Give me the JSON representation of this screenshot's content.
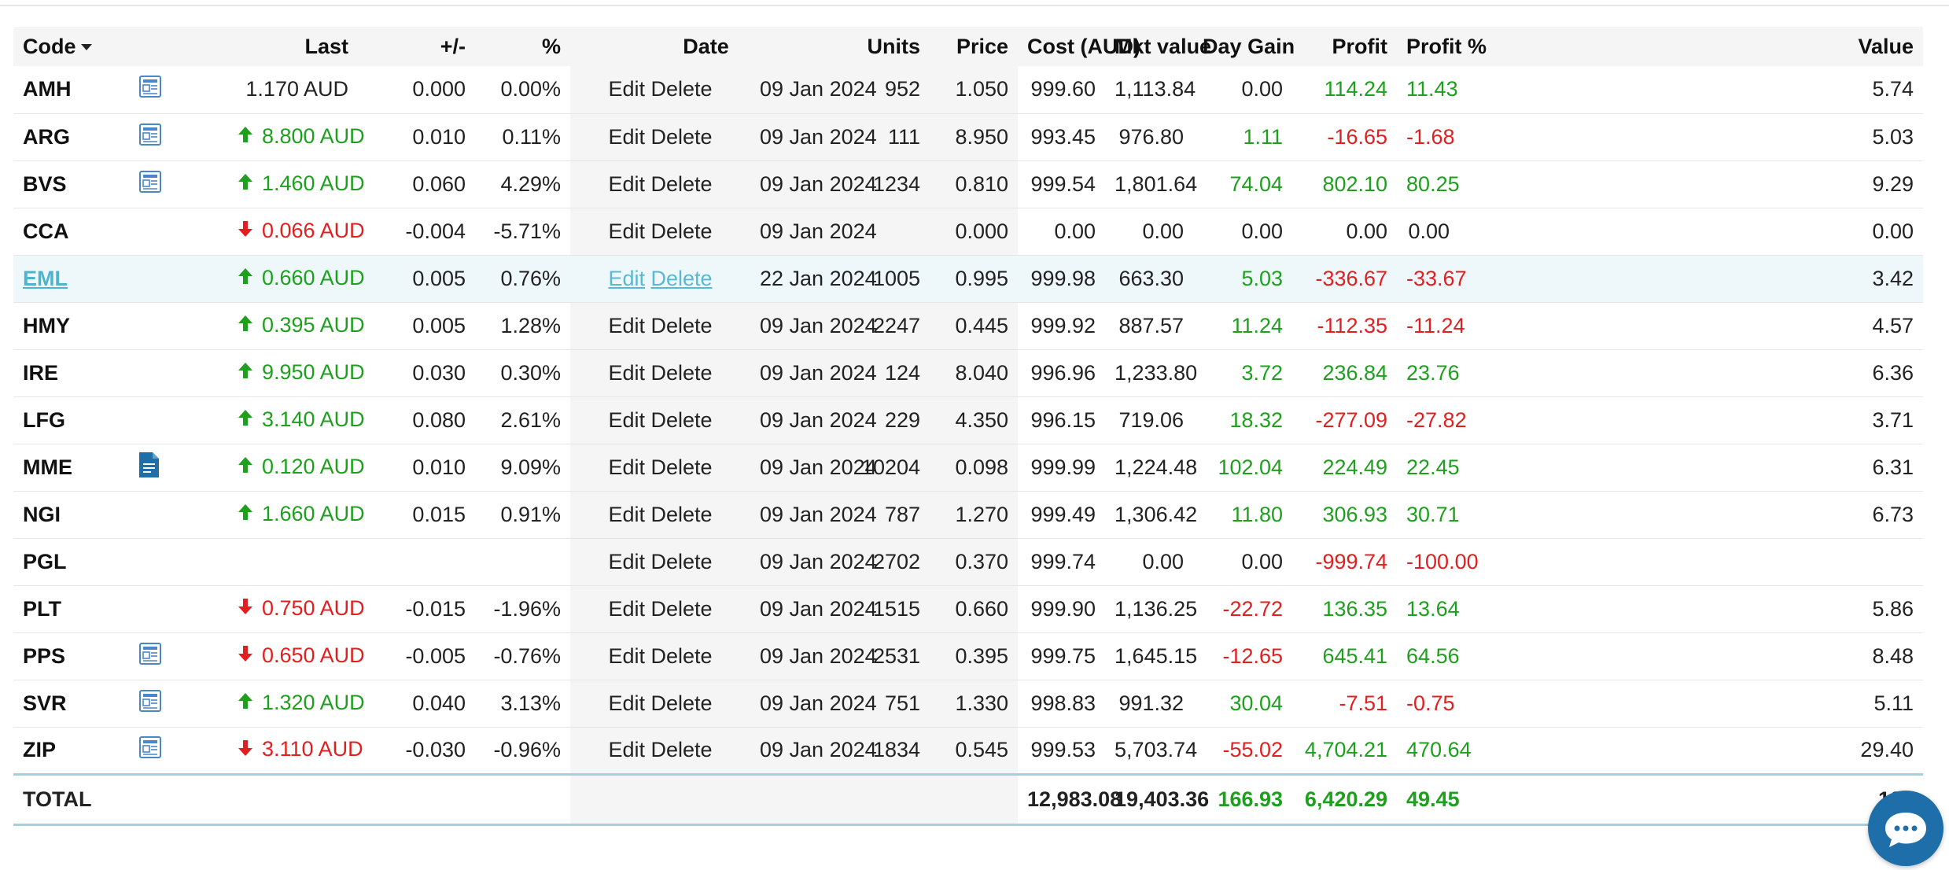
{
  "columns": {
    "code": "Code",
    "last": "Last",
    "change": "+/-",
    "percent": "%",
    "date": "Date",
    "units": "Units",
    "price": "Price",
    "cost": "Cost (AUD)",
    "mkt_value": "Mkt value",
    "day_gain": "Day Gain",
    "profit": "Profit",
    "profit_pct": "Profit %",
    "value": "Value"
  },
  "actions": {
    "edit": "Edit",
    "delete": "Delete"
  },
  "rows": [
    {
      "code": "AMH",
      "icon": "news-icon",
      "arrow": "",
      "last": "1.170 AUD",
      "change": "0.000",
      "pct": "0.00%",
      "date": "09 Jan 2024",
      "units": "952",
      "price": "1.050",
      "cost": "999.60",
      "mkt": "1,113.84",
      "day_gain": "0.00",
      "day_color": "dark",
      "profit": "114.24",
      "profit_pct": "11.43",
      "profit_color": "green",
      "value": "5.74"
    },
    {
      "code": "ARG",
      "icon": "news-icon",
      "arrow": "up",
      "last": "8.800 AUD",
      "change": "0.010",
      "pct": "0.11%",
      "date": "09 Jan 2024",
      "units": "111",
      "price": "8.950",
      "cost": "993.45",
      "mkt": "976.80",
      "day_gain": "1.11",
      "day_color": "green",
      "profit": "-16.65",
      "profit_pct": "-1.68",
      "profit_color": "red",
      "value": "5.03"
    },
    {
      "code": "BVS",
      "icon": "news-icon",
      "arrow": "up",
      "last": "1.460 AUD",
      "change": "0.060",
      "pct": "4.29%",
      "date": "09 Jan 2024",
      "units": "1234",
      "price": "0.810",
      "cost": "999.54",
      "mkt": "1,801.64",
      "day_gain": "74.04",
      "day_color": "green",
      "profit": "802.10",
      "profit_pct": "80.25",
      "profit_color": "green",
      "value": "9.29"
    },
    {
      "code": "CCA",
      "icon": "",
      "arrow": "down",
      "last": "0.066 AUD",
      "change": "-0.004",
      "pct": "-5.71%",
      "date": "09 Jan 2024",
      "units": "",
      "price": "0.000",
      "cost": "0.00",
      "mkt": "0.00",
      "day_gain": "0.00",
      "day_color": "dark",
      "profit": "0.00",
      "profit_pct": "0.00",
      "profit_color": "dark",
      "value": "0.00"
    },
    {
      "code": "EML",
      "icon": "",
      "arrow": "up",
      "last": "0.660 AUD",
      "change": "0.005",
      "pct": "0.76%",
      "date": "22 Jan 2024",
      "units": "1005",
      "price": "0.995",
      "cost": "999.98",
      "mkt": "663.30",
      "day_gain": "5.03",
      "day_color": "green",
      "profit": "-336.67",
      "profit_pct": "-33.67",
      "profit_color": "red",
      "value": "3.42",
      "highlight": true
    },
    {
      "code": "HMY",
      "icon": "",
      "arrow": "up",
      "last": "0.395 AUD",
      "change": "0.005",
      "pct": "1.28%",
      "date": "09 Jan 2024",
      "units": "2247",
      "price": "0.445",
      "cost": "999.92",
      "mkt": "887.57",
      "day_gain": "11.24",
      "day_color": "green",
      "profit": "-112.35",
      "profit_pct": "-11.24",
      "profit_color": "red",
      "value": "4.57"
    },
    {
      "code": "IRE",
      "icon": "",
      "arrow": "up",
      "last": "9.950 AUD",
      "change": "0.030",
      "pct": "0.30%",
      "date": "09 Jan 2024",
      "units": "124",
      "price": "8.040",
      "cost": "996.96",
      "mkt": "1,233.80",
      "day_gain": "3.72",
      "day_color": "green",
      "profit": "236.84",
      "profit_pct": "23.76",
      "profit_color": "green",
      "value": "6.36"
    },
    {
      "code": "LFG",
      "icon": "",
      "arrow": "up",
      "last": "3.140 AUD",
      "change": "0.080",
      "pct": "2.61%",
      "date": "09 Jan 2024",
      "units": "229",
      "price": "4.350",
      "cost": "996.15",
      "mkt": "719.06",
      "day_gain": "18.32",
      "day_color": "green",
      "profit": "-277.09",
      "profit_pct": "-27.82",
      "profit_color": "red",
      "value": "3.71"
    },
    {
      "code": "MME",
      "icon": "document-icon",
      "arrow": "up",
      "last": "0.120 AUD",
      "change": "0.010",
      "pct": "9.09%",
      "date": "09 Jan 2024",
      "units": "10204",
      "price": "0.098",
      "cost": "999.99",
      "mkt": "1,224.48",
      "day_gain": "102.04",
      "day_color": "green",
      "profit": "224.49",
      "profit_pct": "22.45",
      "profit_color": "green",
      "value": "6.31"
    },
    {
      "code": "NGI",
      "icon": "",
      "arrow": "up",
      "last": "1.660 AUD",
      "change": "0.015",
      "pct": "0.91%",
      "date": "09 Jan 2024",
      "units": "787",
      "price": "1.270",
      "cost": "999.49",
      "mkt": "1,306.42",
      "day_gain": "11.80",
      "day_color": "green",
      "profit": "306.93",
      "profit_pct": "30.71",
      "profit_color": "green",
      "value": "6.73"
    },
    {
      "code": "PGL",
      "icon": "",
      "arrow": "",
      "last": "",
      "change": "",
      "pct": "",
      "date": "09 Jan 2024",
      "units": "2702",
      "price": "0.370",
      "cost": "999.74",
      "mkt": "0.00",
      "day_gain": "0.00",
      "day_color": "dark",
      "profit": "-999.74",
      "profit_pct": "-100.00",
      "profit_color": "red",
      "value": ""
    },
    {
      "code": "PLT",
      "icon": "",
      "arrow": "down",
      "last": "0.750 AUD",
      "change": "-0.015",
      "pct": "-1.96%",
      "date": "09 Jan 2024",
      "units": "1515",
      "price": "0.660",
      "cost": "999.90",
      "mkt": "1,136.25",
      "day_gain": "-22.72",
      "day_color": "red",
      "profit": "136.35",
      "profit_pct": "13.64",
      "profit_color": "green",
      "value": "5.86"
    },
    {
      "code": "PPS",
      "icon": "news-icon",
      "arrow": "down",
      "last": "0.650 AUD",
      "change": "-0.005",
      "pct": "-0.76%",
      "date": "09 Jan 2024",
      "units": "2531",
      "price": "0.395",
      "cost": "999.75",
      "mkt": "1,645.15",
      "day_gain": "-12.65",
      "day_color": "red",
      "profit": "645.41",
      "profit_pct": "64.56",
      "profit_color": "green",
      "value": "8.48"
    },
    {
      "code": "SVR",
      "icon": "news-icon",
      "arrow": "up",
      "last": "1.320 AUD",
      "change": "0.040",
      "pct": "3.13%",
      "date": "09 Jan 2024",
      "units": "751",
      "price": "1.330",
      "cost": "998.83",
      "mkt": "991.32",
      "day_gain": "30.04",
      "day_color": "green",
      "profit": "-7.51",
      "profit_pct": "-0.75",
      "profit_color": "red",
      "value": "5.11"
    },
    {
      "code": "ZIP",
      "icon": "news-icon",
      "arrow": "down",
      "last": "3.110 AUD",
      "change": "-0.030",
      "pct": "-0.96%",
      "date": "09 Jan 2024",
      "units": "1834",
      "price": "0.545",
      "cost": "999.53",
      "mkt": "5,703.74",
      "day_gain": "-55.02",
      "day_color": "red",
      "profit": "4,704.21",
      "profit_pct": "470.64",
      "profit_color": "green",
      "value": "29.40"
    }
  ],
  "total": {
    "label": "TOTAL",
    "cost": "12,983.08",
    "mkt": "19,403.36",
    "day_gain": "166.93",
    "profit": "6,420.29",
    "profit_pct": "49.45",
    "value": "100"
  },
  "colors": {
    "green": "#1ea01e",
    "red": "#e02020",
    "highlight_row": "#eef8fb",
    "link": "#4fb3cd",
    "chat_button": "#1e6fa9"
  },
  "chat_button_icon": "chat-icon"
}
